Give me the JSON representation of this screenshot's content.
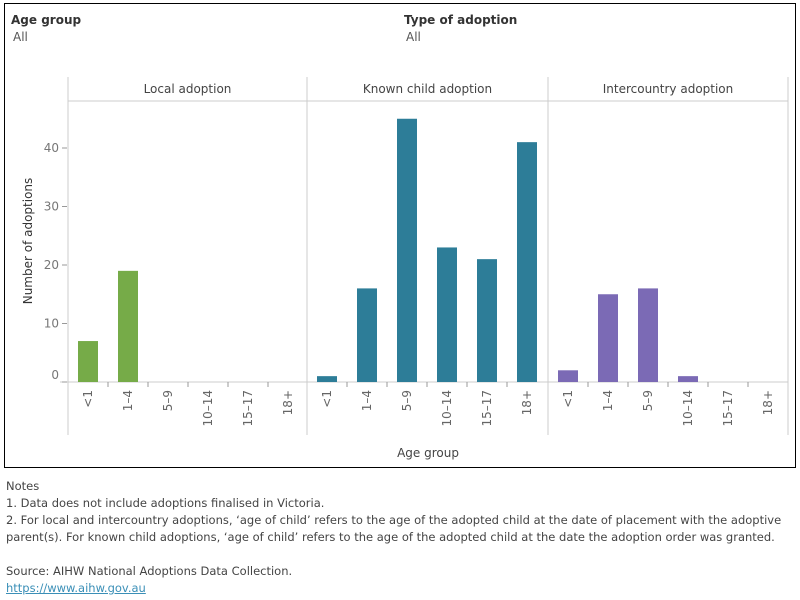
{
  "filters": [
    {
      "label": "Age group",
      "value": "All"
    },
    {
      "label": "Type of adoption",
      "value": "All"
    }
  ],
  "chart_data": {
    "type": "bar",
    "xlabel": "Age group",
    "ylabel": "Number of adoptions",
    "ylim": [
      0,
      48
    ],
    "yticks": [
      0,
      10,
      20,
      30,
      40
    ],
    "categories": [
      "<1",
      "1–4",
      "5–9",
      "10–14",
      "15–17",
      "18+"
    ],
    "grid": false,
    "panels": [
      {
        "name": "Local adoption",
        "color": "#76ab48",
        "values": [
          7,
          19,
          0,
          0,
          0,
          0
        ]
      },
      {
        "name": "Known child adoption",
        "color": "#2d7d98",
        "values": [
          1,
          16,
          45,
          23,
          21,
          41
        ]
      },
      {
        "name": "Intercountry adoption",
        "color": "#7b6ab5",
        "values": [
          2,
          15,
          16,
          1,
          0,
          0
        ]
      }
    ]
  },
  "notes": {
    "heading": "Notes",
    "items": [
      "1. Data does not include adoptions finalised in Victoria.",
      "2. For local and intercountry adoptions, ‘age of child’ refers to the age of the adopted child at the date of placement with the adoptive parent(s). For known child adoptions, ‘age of child’ refers to the age of the adopted child at the date the adoption order was granted."
    ],
    "source": "Source: AIHW National Adoptions Data Collection.",
    "link": "https://www.aihw.gov.au"
  }
}
